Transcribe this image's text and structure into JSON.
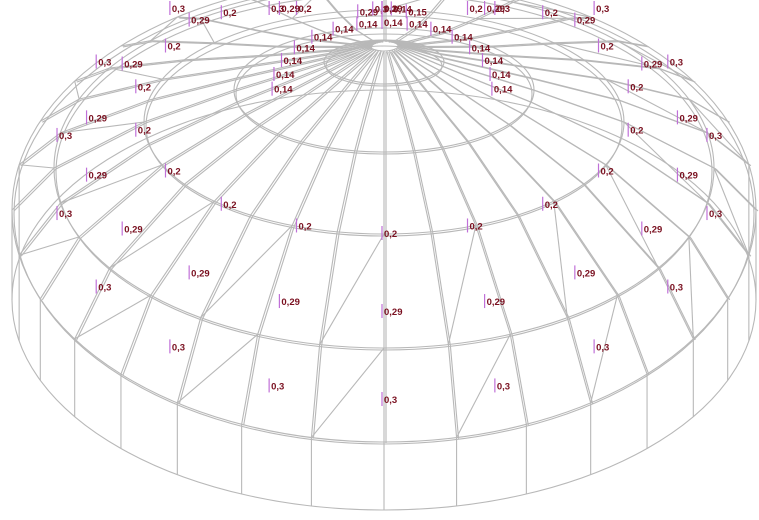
{
  "diagram": {
    "rings": [
      {
        "ring": 1,
        "section_label": "0,14"
      },
      {
        "ring": 2,
        "section_label": "0,2"
      },
      {
        "ring": 3,
        "section_label": "0,29"
      },
      {
        "ring": 4,
        "section_label": "0,3"
      }
    ],
    "visible_labels": {
      "crown": [
        "0,29",
        "0,3",
        "0,14",
        "0,15"
      ],
      "ring_1": [
        "0,14",
        "0,14",
        "0,14",
        "0,14",
        "0,14",
        "0,14",
        "0,14",
        "0,14",
        "0,14",
        "0,14",
        "0,14",
        "0,14",
        "0,14",
        "0,14",
        "0,14"
      ],
      "ring_2": [
        "0,2",
        "0,2",
        "0,2",
        "0,2",
        "0,2",
        "0,2",
        "0,2",
        "0,2",
        "0,2",
        "0,2",
        "0,2",
        "0,2",
        "0,2",
        "0,2",
        "0,2",
        "0,2",
        "0,2",
        "0,2"
      ],
      "ring_3": [
        "0,29",
        "0,29",
        "0,29",
        "0,29",
        "0,29",
        "0,29",
        "0,29",
        "0,29",
        "0,29",
        "0,29",
        "0,29",
        "0,29",
        "0,29",
        "0,29",
        "0,29",
        "0,29",
        "0,29",
        "0,29"
      ],
      "ring_4": [
        "0,3",
        "0,3",
        "0,3",
        "0,3",
        "0,3",
        "0,3",
        "0,3",
        "0,3",
        "0,3",
        "0,3",
        "0,3",
        "0,3",
        "0,3",
        "0,3",
        "0,3",
        "0,3",
        "0,3",
        "0,3"
      ]
    },
    "colors": {
      "member_stroke": "#b8b8b8",
      "label_text": "#7a1020",
      "label_tick": "#c070d8",
      "background": "#ffffff"
    }
  }
}
